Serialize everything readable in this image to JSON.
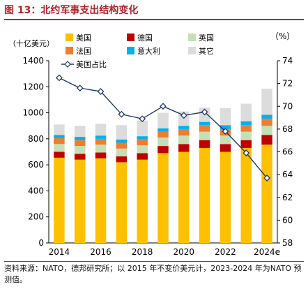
{
  "header": {
    "title": "图 13：北约军事支出结构变化"
  },
  "footer": {
    "source": "资料来源：NATO，德邦研究所；以 2015 年不变价美元计，2023-2024 年为NATO 预测值。"
  },
  "chart_data": {
    "type": "bar",
    "stacked": true,
    "categories": [
      "2014",
      "2015",
      "2016",
      "2017",
      "2018",
      "2019",
      "2020",
      "2021",
      "2022",
      "2023",
      "2024e"
    ],
    "x_tick_labels": [
      "2014",
      "2016",
      "2018",
      "2020",
      "2022",
      "2024e"
    ],
    "left_axis": {
      "unit_label": "（十亿美元）",
      "ylim": [
        0,
        1400
      ],
      "ticks": [
        0,
        200,
        400,
        600,
        800,
        1000,
        1200,
        1400
      ]
    },
    "right_axis": {
      "unit_label": "（%）",
      "ylim": [
        58,
        74
      ],
      "ticks": [
        58,
        60,
        62,
        64,
        66,
        68,
        70,
        72,
        74
      ]
    },
    "series": [
      {
        "name": "美国",
        "color": "#ffc000",
        "values": [
          655,
          640,
          650,
          620,
          640,
          690,
          700,
          730,
          700,
          730,
          755
        ]
      },
      {
        "name": "德国",
        "color": "#c00000",
        "values": [
          45,
          45,
          45,
          45,
          50,
          55,
          60,
          60,
          60,
          60,
          75
        ]
      },
      {
        "name": "英国",
        "color": "#c5e0b4",
        "values": [
          60,
          60,
          60,
          60,
          60,
          65,
          65,
          65,
          65,
          65,
          70
        ]
      },
      {
        "name": "法国",
        "color": "#ed7d31",
        "values": [
          45,
          45,
          45,
          45,
          45,
          45,
          50,
          50,
          50,
          50,
          55
        ]
      },
      {
        "name": "意大利",
        "color": "#00b0f0",
        "values": [
          25,
          25,
          25,
          25,
          25,
          25,
          25,
          25,
          30,
          30,
          30
        ]
      },
      {
        "name": "其它",
        "color": "#dcdcdc",
        "values": [
          80,
          85,
          90,
          110,
          120,
          120,
          110,
          110,
          130,
          135,
          200
        ]
      }
    ],
    "line": {
      "name": "美国占比",
      "axis": "right",
      "color": "#1f3864",
      "values": [
        72.5,
        71.6,
        71.3,
        69.3,
        68.9,
        70.0,
        69.2,
        69.5,
        67.8,
        65.9,
        63.7
      ]
    },
    "legend_position": "top-left"
  }
}
